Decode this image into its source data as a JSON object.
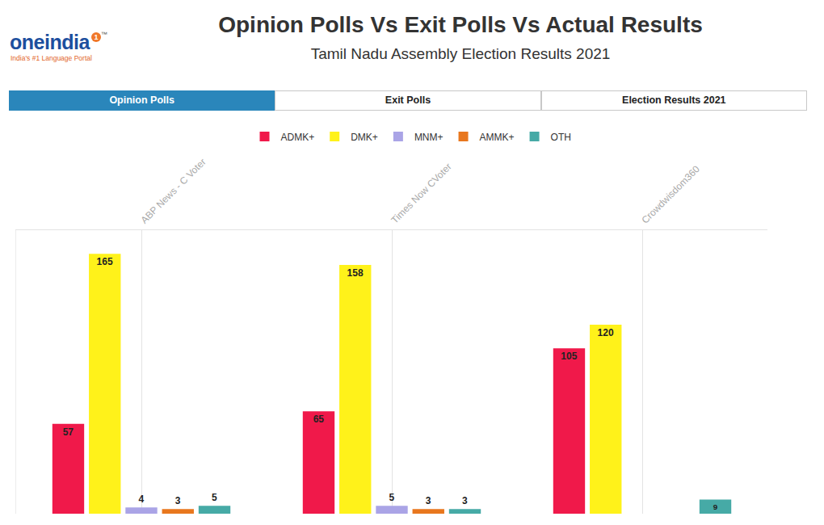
{
  "header": {
    "logo": "oneindia",
    "logo_badge": "1",
    "logo_mark": "™",
    "tagline": "India's #1 Language Portal",
    "tabs": [
      "Opinion Polls",
      "Exit Polls",
      "Election Results 2021"
    ],
    "active_tab": "Opinion Polls"
  },
  "chart_data": {
    "type": "bar",
    "title": "Opinion Polls Vs Exit Polls Vs Actual Results",
    "subtitle": "Tamil Nadu Assembly Election Results 2021",
    "categories": [
      "ABP News - C Voter",
      "Times Now CVoter",
      "Crowdwisdom360"
    ],
    "series": [
      {
        "name": "ADMK+",
        "color": "#f0194a",
        "values": [
          57,
          65,
          105
        ]
      },
      {
        "name": "DMK+",
        "color": "#fff21a",
        "values": [
          165,
          158,
          120
        ]
      },
      {
        "name": "MNM+",
        "color": "#aaa4e6",
        "values": [
          4,
          5,
          null
        ]
      },
      {
        "name": "AMMK+",
        "color": "#e8771e",
        "values": [
          3,
          3,
          null
        ]
      },
      {
        "name": "OTH",
        "color": "#46aaa6",
        "values": [
          5,
          3,
          9
        ]
      }
    ],
    "ylim": [
      0,
      180
    ],
    "grid": true,
    "legend": "top",
    "data_labels": true,
    "tick_labels": "x"
  }
}
